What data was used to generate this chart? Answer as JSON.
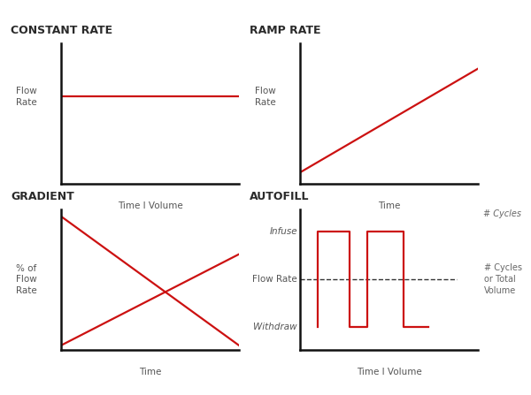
{
  "title_color": "#2a2a2a",
  "line_color": "#cc1111",
  "axis_color": "#111111",
  "label_color": "#555555",
  "bg_color": "#ffffff",
  "annotation_color": "#666666",
  "panel_titles": [
    "CONSTANT RATE",
    "RAMP RATE",
    "GRADIENT",
    "AUTOFILL"
  ],
  "const_ylabel": "Flow\nRate",
  "const_xlabel": "Time I Volume",
  "ramp_ylabel": "Flow\nRate",
  "ramp_xlabel": "Time",
  "ramp_annotation": "# Cycles",
  "grad_ylabel": "% of\nFlow\nRate",
  "grad_xlabel": "Time",
  "auto_xlabel": "Time I Volume",
  "auto_annotation": "# Cycles\nor Total\nVolume",
  "auto_label_infuse": "Infuse",
  "auto_label_flowrate": "Flow Rate",
  "auto_label_withdraw": "Withdraw"
}
